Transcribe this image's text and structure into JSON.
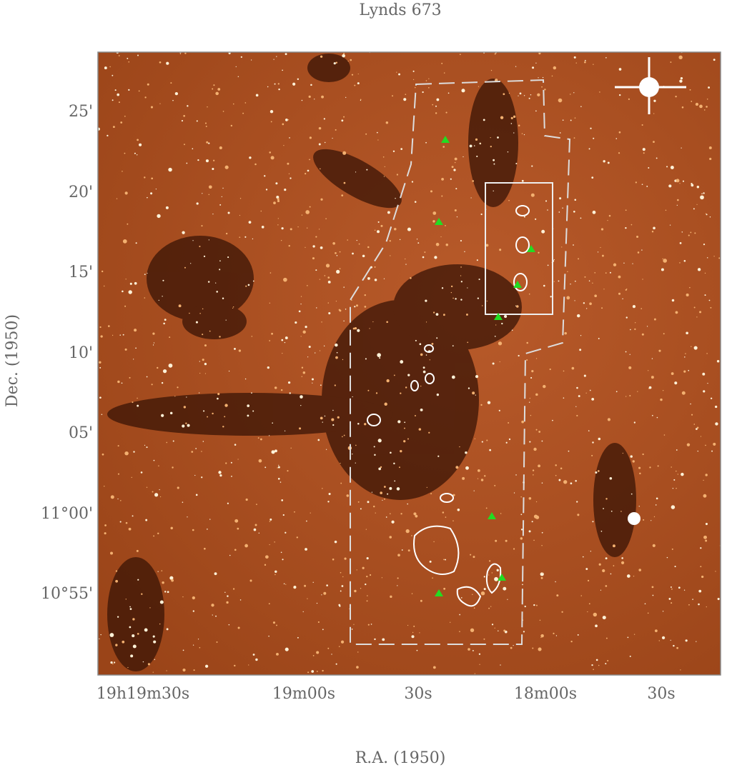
{
  "title": "Lynds 673",
  "x_axis": {
    "label": "R.A. (1950)",
    "tick_labels": [
      "19h19m30s",
      "19m00s",
      "30s",
      "18m00s",
      "30s"
    ]
  },
  "y_axis": {
    "label": "Dec. (1950)",
    "tick_labels": [
      "25'",
      "20'",
      "15'",
      "10'",
      "05'",
      "11°00'",
      "10°55'"
    ]
  }
}
